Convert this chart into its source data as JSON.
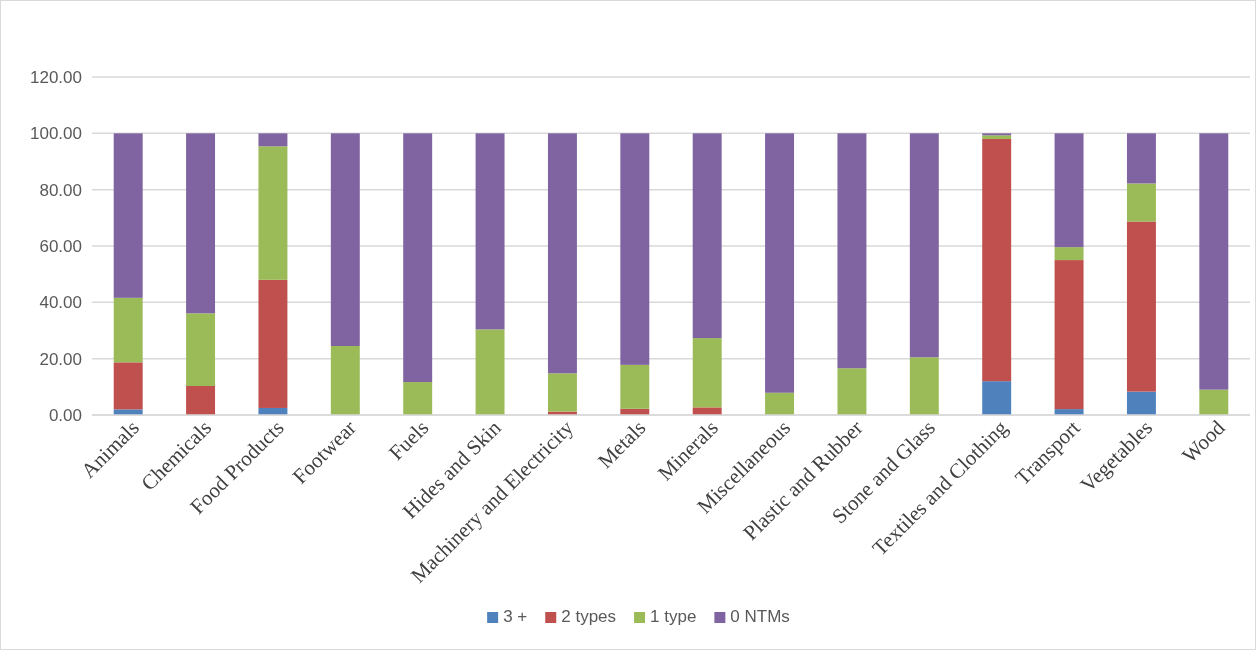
{
  "chart_data": {
    "type": "bar",
    "stacked": true,
    "categories": [
      "Animals",
      "Chemicals",
      "Food Products",
      "Footwear",
      "Fuels",
      "Hides and Skin",
      "Machinery and Electricity",
      "Metals",
      "Minerals",
      "Miscellaneous",
      "Plastic and Rubber",
      "Stone and Glass",
      "Textiles and Clothing",
      "Transport",
      "Vegetables",
      "Wood"
    ],
    "series": [
      {
        "name": "3 +",
        "color": "#4f81bd",
        "values": [
          2.0,
          0,
          2.5,
          0,
          0,
          0,
          0,
          0,
          0,
          0,
          0,
          0,
          12.0,
          2.1,
          8.3,
          0
        ]
      },
      {
        "name": "2 types",
        "color": "#c0504d",
        "values": [
          16.7,
          10.3,
          45.5,
          0,
          0,
          0,
          1.2,
          2.2,
          2.7,
          0,
          0,
          0,
          86.0,
          52.9,
          60.4,
          null
        ]
      },
      {
        "name": "1 type",
        "color": "#9bbb59",
        "values": [
          22.9,
          25.8,
          47.4,
          24.5,
          11.7,
          30.4,
          13.6,
          15.6,
          24.6,
          7.9,
          16.6,
          20.5,
          1.3,
          4.6,
          13.5,
          9.0
        ]
      },
      {
        "name": "0 NTMs",
        "color": "#8064a2",
        "values": [
          58.4,
          63.9,
          4.6,
          75.5,
          88.3,
          69.6,
          85.2,
          82.2,
          72.7,
          92.1,
          83.4,
          79.5,
          0.7,
          40.4,
          17.8,
          91.0
        ]
      }
    ],
    "ylim": [
      0,
      120
    ],
    "yticks": [
      {
        "value": 0,
        "label": "0.00"
      },
      {
        "value": 20,
        "label": "20.00"
      },
      {
        "value": 40,
        "label": "40.00"
      },
      {
        "value": 60,
        "label": "60.00"
      },
      {
        "value": 80,
        "label": "80.00"
      },
      {
        "value": 100,
        "label": "100.00"
      },
      {
        "value": 120,
        "label": "120.00"
      }
    ],
    "grid": "y",
    "legend": "bottom"
  }
}
